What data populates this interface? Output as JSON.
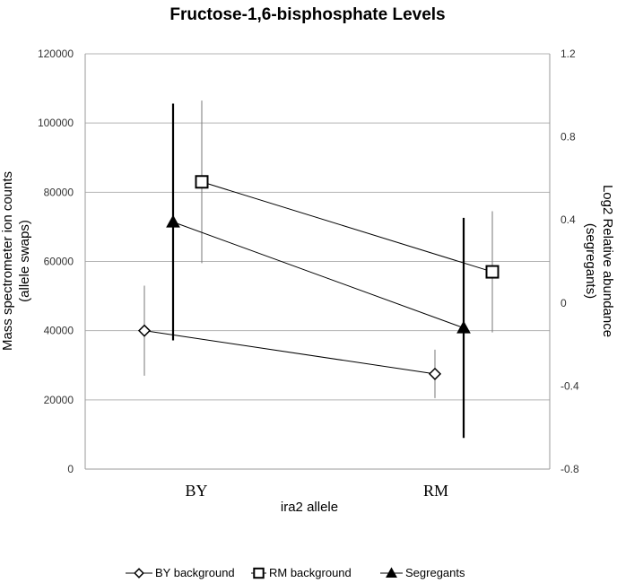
{
  "chart_data": {
    "type": "line",
    "title": "Fructose-1,6-bisphosphate Levels",
    "xlabel": "ira2 allele",
    "categories": [
      "BY",
      "RM"
    ],
    "left_axis": {
      "label_lines": [
        "Mass spectrometer ion counts",
        "(allele swaps)"
      ],
      "ylim": [
        0,
        120000
      ],
      "ticks": [
        0,
        20000,
        40000,
        60000,
        80000,
        100000,
        120000
      ],
      "tick_labels": [
        "0",
        "20000",
        "40000",
        "60000",
        "80000",
        "100000",
        "120000"
      ]
    },
    "right_axis": {
      "label_lines": [
        "Log2 Relative abundance",
        "(segregants)"
      ],
      "ylim": [
        -0.8,
        1.2
      ],
      "ticks": [
        -0.8,
        -0.4,
        0,
        0.4,
        0.8,
        1.2
      ],
      "tick_labels": [
        "-0.8",
        "-0.4",
        "0",
        "0.4",
        "0.8",
        "1.2"
      ]
    },
    "grid": true,
    "legend_position": "bottom",
    "series": [
      {
        "name": "BY background",
        "axis": "left",
        "marker": "diamond",
        "values": [
          40000,
          27500
        ],
        "error": [
          13000,
          7000
        ]
      },
      {
        "name": "RM background",
        "axis": "left",
        "marker": "square",
        "values": [
          83000,
          57000
        ],
        "error": [
          23500,
          17500
        ]
      },
      {
        "name": "Segregants",
        "axis": "right",
        "marker": "triangle",
        "values": [
          0.39,
          -0.12
        ],
        "error": [
          0.57,
          0.53
        ]
      }
    ]
  },
  "colors": {
    "line": "#000000",
    "grid": "#b3b3b3",
    "axis": "#999999",
    "fill": "#ffffff"
  }
}
